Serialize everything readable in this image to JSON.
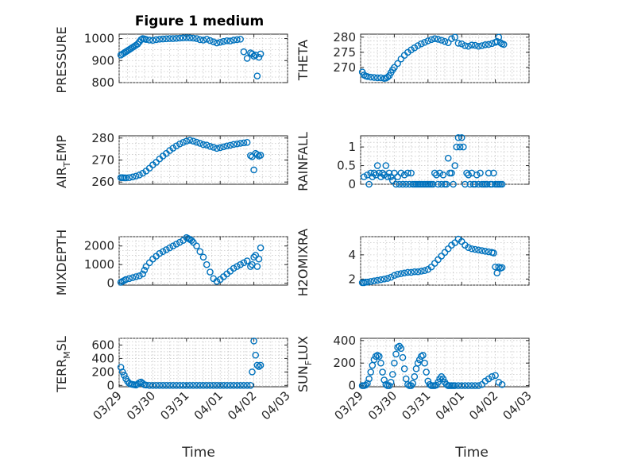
{
  "figure": {
    "title": "Figure 1 medium",
    "marker_color": "#0072BD"
  },
  "chart_data": [
    {
      "type": "scatter",
      "name": "pressure",
      "title": "Figure 1 medium",
      "xlabel": "",
      "ylabel": "PRESSURE",
      "ylim": [
        800,
        1020
      ],
      "yticks": [
        800,
        900,
        1000
      ],
      "ytick_labels": [
        "800",
        "900",
        "1000"
      ],
      "xlim": [
        0,
        5
      ],
      "xticks": [
        0,
        1,
        2,
        3,
        4,
        5
      ],
      "xtick_labels": [],
      "grid": true,
      "x": [
        0.05,
        0.1,
        0.15,
        0.2,
        0.25,
        0.3,
        0.35,
        0.4,
        0.45,
        0.5,
        0.55,
        0.6,
        0.65,
        0.7,
        0.75,
        0.8,
        0.9,
        1.0,
        1.1,
        1.2,
        1.3,
        1.4,
        1.5,
        1.6,
        1.7,
        1.8,
        1.9,
        2.0,
        2.1,
        2.2,
        2.3,
        2.4,
        2.5,
        2.6,
        2.7,
        2.8,
        2.9,
        3.0,
        3.1,
        3.2,
        3.3,
        3.4,
        3.5,
        3.6,
        3.7,
        3.8,
        3.9,
        3.95,
        4.0,
        4.05,
        4.1,
        4.15,
        4.2
      ],
      "y": [
        925,
        930,
        935,
        940,
        945,
        950,
        955,
        960,
        965,
        970,
        975,
        985,
        995,
        1000,
        998,
        996,
        993,
        992,
        995,
        997,
        998,
        999,
        1000,
        1000,
        1001,
        1002,
        1003,
        1004,
        1003,
        1002,
        1000,
        995,
        993,
        997,
        991,
        985,
        980,
        983,
        987,
        990,
        989,
        993,
        995,
        997,
        940,
        910,
        935,
        930,
        920,
        925,
        830,
        915,
        930
      ]
    },
    {
      "type": "scatter",
      "name": "theta",
      "title": "",
      "xlabel": "",
      "ylabel": "THETA",
      "ylim": [
        265,
        281
      ],
      "yticks": [
        270,
        275,
        280
      ],
      "ytick_labels": [
        "270",
        "275",
        "280"
      ],
      "xlim": [
        0,
        5
      ],
      "xticks": [
        0,
        1,
        2,
        3,
        4,
        5
      ],
      "xtick_labels": [],
      "grid": true,
      "x": [
        0.05,
        0.1,
        0.15,
        0.2,
        0.3,
        0.4,
        0.5,
        0.6,
        0.7,
        0.75,
        0.8,
        0.85,
        0.9,
        0.95,
        1.0,
        1.1,
        1.2,
        1.3,
        1.4,
        1.5,
        1.6,
        1.7,
        1.8,
        1.9,
        2.0,
        2.1,
        2.2,
        2.3,
        2.4,
        2.5,
        2.6,
        2.7,
        2.8,
        2.9,
        3.0,
        3.1,
        3.2,
        3.3,
        3.4,
        3.5,
        3.6,
        3.7,
        3.8,
        3.9,
        4.0,
        4.05,
        4.1,
        4.15,
        4.2,
        4.25
      ],
      "y": [
        268.5,
        267.5,
        267.2,
        267.0,
        266.8,
        266.7,
        266.6,
        266.6,
        266.4,
        266.5,
        266.8,
        267.3,
        268.3,
        269.2,
        270.0,
        271.3,
        272.8,
        274.0,
        275.0,
        275.8,
        276.5,
        277.2,
        277.8,
        278.3,
        278.8,
        279.2,
        279.5,
        279.3,
        279.0,
        278.6,
        278.2,
        279.5,
        280.0,
        278.0,
        277.8,
        277.2,
        277.0,
        277.4,
        277.3,
        277.0,
        277.2,
        277.5,
        277.6,
        277.9,
        278.3,
        278.6,
        280.0,
        278.2,
        277.8,
        277.6
      ]
    },
    {
      "type": "scatter",
      "name": "air_temp",
      "title": "",
      "xlabel": "",
      "ylabel": "AIR_TEMP",
      "ylim": [
        259,
        281
      ],
      "yticks": [
        260,
        270,
        280
      ],
      "ytick_labels": [
        "260",
        "270",
        "280"
      ],
      "xlim": [
        0,
        5
      ],
      "xticks": [
        0,
        1,
        2,
        3,
        4,
        5
      ],
      "xtick_labels": [],
      "grid": true,
      "x": [
        0.05,
        0.1,
        0.15,
        0.2,
        0.3,
        0.4,
        0.5,
        0.6,
        0.7,
        0.8,
        0.9,
        1.0,
        1.1,
        1.2,
        1.3,
        1.4,
        1.5,
        1.6,
        1.7,
        1.8,
        1.9,
        2.0,
        2.1,
        2.2,
        2.3,
        2.4,
        2.5,
        2.6,
        2.7,
        2.8,
        2.9,
        3.0,
        3.1,
        3.2,
        3.3,
        3.4,
        3.5,
        3.6,
        3.7,
        3.8,
        3.9,
        3.95,
        4.0,
        4.05,
        4.1,
        4.15,
        4.2
      ],
      "y": [
        262.0,
        262.0,
        261.9,
        261.9,
        262.0,
        262.3,
        262.7,
        263.2,
        264.0,
        265.0,
        266.3,
        267.8,
        269.0,
        270.5,
        271.8,
        273.0,
        274.3,
        275.4,
        276.4,
        277.3,
        278.0,
        278.6,
        279.0,
        278.6,
        278.1,
        277.6,
        277.0,
        276.8,
        276.2,
        275.8,
        275.3,
        275.6,
        276.0,
        276.4,
        276.7,
        277.1,
        277.3,
        277.6,
        277.8,
        278.0,
        272.0,
        271.5,
        265.5,
        273.0,
        272.5,
        271.8,
        272.2
      ]
    },
    {
      "type": "scatter",
      "name": "rainfall",
      "title": "",
      "xlabel": "",
      "ylabel": "RAINFALL",
      "ylim": [
        0,
        1.3
      ],
      "yticks": [
        0,
        0.5,
        1
      ],
      "ytick_labels": [
        "0",
        "0.5",
        "1"
      ],
      "xlim": [
        0,
        5
      ],
      "xticks": [
        0,
        1,
        2,
        3,
        4,
        5
      ],
      "xtick_labels": [],
      "grid": true,
      "x": [
        0.1,
        0.2,
        0.25,
        0.3,
        0.35,
        0.4,
        0.45,
        0.5,
        0.55,
        0.6,
        0.65,
        0.7,
        0.75,
        0.8,
        0.85,
        0.9,
        0.95,
        1.0,
        1.05,
        1.1,
        1.15,
        1.2,
        1.25,
        1.3,
        1.35,
        1.4,
        1.45,
        1.5,
        1.55,
        1.6,
        1.65,
        1.7,
        1.75,
        1.8,
        1.85,
        1.9,
        1.95,
        2.0,
        2.05,
        2.1,
        2.15,
        2.2,
        2.25,
        2.3,
        2.35,
        2.4,
        2.45,
        2.5,
        2.55,
        2.6,
        2.65,
        2.7,
        2.75,
        2.8,
        2.85,
        2.9,
        2.95,
        3.0,
        3.05,
        3.1,
        3.15,
        3.2,
        3.25,
        3.3,
        3.35,
        3.4,
        3.45,
        3.5,
        3.55,
        3.6,
        3.65,
        3.7,
        3.75,
        3.8,
        3.85,
        3.9,
        3.95,
        4.0,
        4.05,
        4.1,
        4.15,
        4.2
      ],
      "y": [
        0.2,
        0.25,
        0.0,
        0.3,
        0.2,
        0.3,
        0.25,
        0.5,
        0.3,
        0.2,
        0.3,
        0.25,
        0.5,
        0.2,
        0.3,
        0.2,
        0.1,
        0.3,
        0.0,
        0.2,
        0.0,
        0.3,
        0.0,
        0.25,
        0.0,
        0.3,
        0.0,
        0.3,
        0.0,
        0.0,
        0.0,
        0.0,
        0.0,
        0.0,
        0.0,
        0.0,
        0.0,
        0.0,
        0.0,
        0.0,
        0.0,
        0.3,
        0.25,
        0.0,
        0.3,
        0.0,
        0.25,
        0.0,
        0.0,
        0.7,
        0.3,
        0.3,
        0.0,
        0.5,
        1.0,
        1.25,
        1.0,
        1.25,
        1.0,
        0.0,
        0.3,
        0.25,
        0.0,
        0.3,
        0.0,
        0.0,
        0.25,
        0.0,
        0.3,
        0.0,
        0.0,
        0.0,
        0.0,
        0.3,
        0.0,
        0.0,
        0.3,
        0.0,
        0.0,
        0.0,
        0.0,
        0.0
      ]
    },
    {
      "type": "scatter",
      "name": "mixdepth",
      "title": "",
      "xlabel": "",
      "ylabel": "MIXDEPTH",
      "ylim": [
        -100,
        2500
      ],
      "yticks": [
        0,
        1000,
        2000
      ],
      "ytick_labels": [
        "0",
        "1000",
        "2000"
      ],
      "xlim": [
        0,
        5
      ],
      "xticks": [
        0,
        1,
        2,
        3,
        4,
        5
      ],
      "xtick_labels": [],
      "grid": true,
      "x": [
        0.05,
        0.1,
        0.15,
        0.2,
        0.3,
        0.4,
        0.5,
        0.6,
        0.7,
        0.75,
        0.8,
        0.9,
        1.0,
        1.1,
        1.2,
        1.3,
        1.4,
        1.5,
        1.6,
        1.7,
        1.8,
        1.9,
        2.0,
        2.05,
        2.1,
        2.15,
        2.2,
        2.3,
        2.4,
        2.5,
        2.6,
        2.7,
        2.8,
        2.9,
        3.0,
        3.1,
        3.2,
        3.3,
        3.4,
        3.5,
        3.6,
        3.7,
        3.8,
        3.9,
        3.95,
        4.0,
        4.05,
        4.1,
        4.15,
        4.2
      ],
      "y": [
        50,
        100,
        150,
        200,
        250,
        300,
        350,
        400,
        500,
        700,
        900,
        1100,
        1300,
        1450,
        1600,
        1700,
        1800,
        1900,
        2000,
        2100,
        2200,
        2300,
        2450,
        2400,
        2350,
        2300,
        2200,
        2000,
        1700,
        1400,
        1000,
        600,
        250,
        100,
        200,
        350,
        500,
        650,
        800,
        900,
        1000,
        1100,
        1200,
        900,
        1000,
        1400,
        1500,
        900,
        1300,
        1900
      ]
    },
    {
      "type": "scatter",
      "name": "h2omixra",
      "title": "",
      "xlabel": "",
      "ylabel": "H2OMIXRA",
      "ylim": [
        1.5,
        5.5
      ],
      "yticks": [
        2,
        4
      ],
      "ytick_labels": [
        "2",
        "4"
      ],
      "xlim": [
        0,
        5
      ],
      "xticks": [
        0,
        1,
        2,
        3,
        4,
        5
      ],
      "xtick_labels": [],
      "grid": true,
      "x": [
        0.05,
        0.1,
        0.15,
        0.2,
        0.3,
        0.4,
        0.5,
        0.6,
        0.7,
        0.8,
        0.9,
        1.0,
        1.1,
        1.2,
        1.3,
        1.4,
        1.5,
        1.6,
        1.7,
        1.8,
        1.9,
        2.0,
        2.1,
        2.2,
        2.3,
        2.4,
        2.5,
        2.6,
        2.7,
        2.8,
        2.9,
        3.0,
        3.1,
        3.2,
        3.3,
        3.4,
        3.5,
        3.6,
        3.7,
        3.8,
        3.9,
        3.95,
        4.0,
        4.05,
        4.1,
        4.15,
        4.2
      ],
      "y": [
        1.7,
        1.7,
        1.75,
        1.75,
        1.8,
        1.85,
        1.9,
        1.95,
        2.0,
        2.05,
        2.15,
        2.3,
        2.4,
        2.45,
        2.5,
        2.55,
        2.55,
        2.6,
        2.6,
        2.65,
        2.7,
        2.8,
        3.0,
        3.3,
        3.6,
        3.9,
        4.2,
        4.5,
        4.8,
        5.0,
        5.3,
        5.1,
        4.8,
        4.6,
        4.5,
        4.45,
        4.4,
        4.35,
        4.3,
        4.25,
        4.2,
        4.15,
        3.0,
        2.5,
        3.0,
        2.9,
        2.95
      ]
    },
    {
      "type": "scatter",
      "name": "terr_msl",
      "title": "",
      "xlabel": "Time",
      "ylabel": "TERR_MSL",
      "ylim": [
        -20,
        700
      ],
      "yticks": [
        0,
        200,
        400,
        600
      ],
      "ytick_labels": [
        "0",
        "200",
        "400",
        "600"
      ],
      "xlim": [
        0,
        5
      ],
      "xticks": [
        0,
        1,
        2,
        3,
        4,
        5
      ],
      "xtick_labels": [
        "03/29",
        "03/30",
        "03/31",
        "04/01",
        "04/02",
        "04/03"
      ],
      "grid": true,
      "x": [
        0.05,
        0.1,
        0.15,
        0.2,
        0.25,
        0.3,
        0.35,
        0.4,
        0.45,
        0.5,
        0.55,
        0.6,
        0.65,
        0.7,
        0.75,
        0.8,
        0.9,
        1.0,
        1.1,
        1.2,
        1.3,
        1.4,
        1.5,
        1.6,
        1.7,
        1.8,
        1.9,
        2.0,
        2.1,
        2.2,
        2.3,
        2.4,
        2.5,
        2.6,
        2.7,
        2.8,
        2.9,
        3.0,
        3.1,
        3.2,
        3.3,
        3.4,
        3.5,
        3.6,
        3.7,
        3.8,
        3.9,
        3.95,
        4.0,
        4.05,
        4.1,
        4.15,
        4.2
      ],
      "y": [
        270,
        200,
        150,
        100,
        60,
        30,
        20,
        15,
        10,
        5,
        20,
        40,
        50,
        30,
        10,
        5,
        0,
        0,
        0,
        0,
        0,
        0,
        0,
        0,
        0,
        0,
        0,
        0,
        0,
        0,
        0,
        0,
        0,
        0,
        0,
        0,
        0,
        0,
        0,
        0,
        0,
        0,
        0,
        0,
        0,
        0,
        0,
        200,
        660,
        450,
        300,
        280,
        300
      ]
    },
    {
      "type": "scatter",
      "name": "sun_flux",
      "title": "",
      "xlabel": "Time",
      "ylabel": "SUN_FLUX",
      "ylim": [
        -10,
        420
      ],
      "yticks": [
        0,
        200,
        400
      ],
      "ytick_labels": [
        "0",
        "200",
        "400"
      ],
      "xlim": [
        0,
        5
      ],
      "xticks": [
        0,
        1,
        2,
        3,
        4,
        5
      ],
      "xtick_labels": [
        "03/29",
        "03/30",
        "03/31",
        "04/01",
        "04/02",
        "04/03"
      ],
      "grid": true,
      "x": [
        0.05,
        0.1,
        0.15,
        0.2,
        0.25,
        0.3,
        0.35,
        0.4,
        0.45,
        0.5,
        0.55,
        0.6,
        0.65,
        0.7,
        0.75,
        0.8,
        0.85,
        0.9,
        0.95,
        1.0,
        1.05,
        1.1,
        1.15,
        1.2,
        1.25,
        1.3,
        1.35,
        1.4,
        1.45,
        1.5,
        1.55,
        1.6,
        1.65,
        1.7,
        1.75,
        1.8,
        1.85,
        1.9,
        1.95,
        2.0,
        2.05,
        2.1,
        2.15,
        2.2,
        2.25,
        2.3,
        2.35,
        2.4,
        2.45,
        2.5,
        2.55,
        2.6,
        2.65,
        2.7,
        2.75,
        2.8,
        2.9,
        3.0,
        3.1,
        3.2,
        3.3,
        3.4,
        3.5,
        3.6,
        3.7,
        3.8,
        3.9,
        4.0,
        4.1,
        4.2
      ],
      "y": [
        0,
        0,
        5,
        20,
        60,
        120,
        180,
        230,
        260,
        270,
        260,
        200,
        120,
        50,
        10,
        0,
        0,
        30,
        100,
        200,
        280,
        340,
        350,
        330,
        250,
        150,
        60,
        10,
        0,
        0,
        20,
        80,
        150,
        200,
        230,
        260,
        270,
        200,
        120,
        40,
        10,
        0,
        0,
        0,
        5,
        30,
        60,
        80,
        60,
        30,
        10,
        0,
        0,
        0,
        0,
        0,
        0,
        0,
        0,
        0,
        0,
        0,
        0,
        10,
        40,
        60,
        80,
        90,
        30,
        10
      ]
    }
  ]
}
